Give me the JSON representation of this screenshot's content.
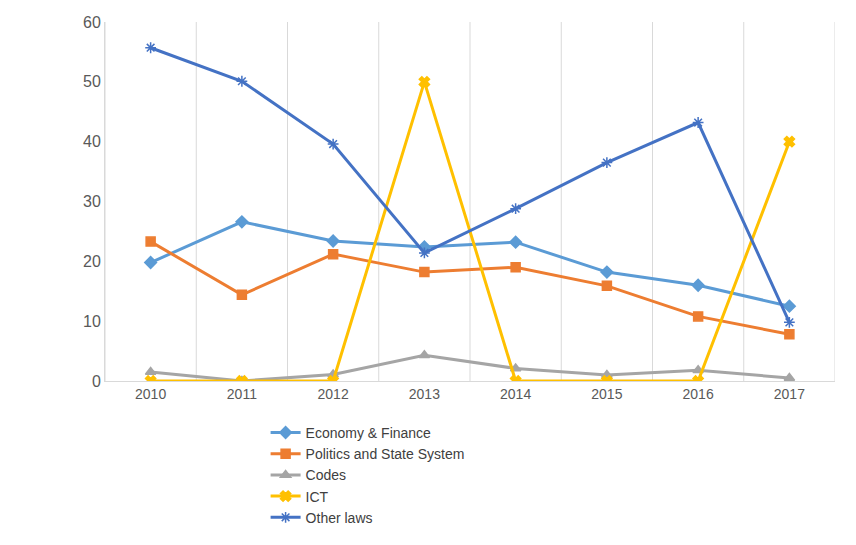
{
  "chart_data": {
    "type": "line",
    "categories": [
      "2010",
      "2011",
      "2012",
      "2013",
      "2014",
      "2015",
      "2016",
      "2017"
    ],
    "series": [
      {
        "name": "Economy & Finance",
        "color": "#5b9bd5",
        "marker": "diamond",
        "values": [
          19.8,
          26.6,
          23.4,
          22.4,
          23.2,
          18.2,
          16.0,
          12.5
        ]
      },
      {
        "name": "Politics and State System",
        "color": "#ed7d31",
        "marker": "square",
        "values": [
          23.3,
          14.4,
          21.2,
          18.2,
          19.0,
          15.9,
          10.8,
          7.8
        ]
      },
      {
        "name": "Codes",
        "color": "#a5a5a5",
        "marker": "triangle-up",
        "values": [
          1.5,
          0,
          1.1,
          4.3,
          2.1,
          1.0,
          1.8,
          0.5
        ]
      },
      {
        "name": "ICT",
        "color": "#ffc000",
        "marker": "x",
        "values": [
          0,
          0,
          0,
          50,
          0,
          0,
          0,
          40
        ]
      },
      {
        "name": "Other laws",
        "color": "#4472c4",
        "marker": "asterisk-open",
        "values": [
          55.7,
          50.1,
          39.6,
          21.4,
          28.8,
          36.5,
          43.2,
          9.8
        ]
      }
    ],
    "ylim": [
      0,
      60
    ],
    "yticks": [
      0,
      10,
      20,
      30,
      40,
      50,
      60
    ],
    "grid": true,
    "legend": "bottom"
  }
}
